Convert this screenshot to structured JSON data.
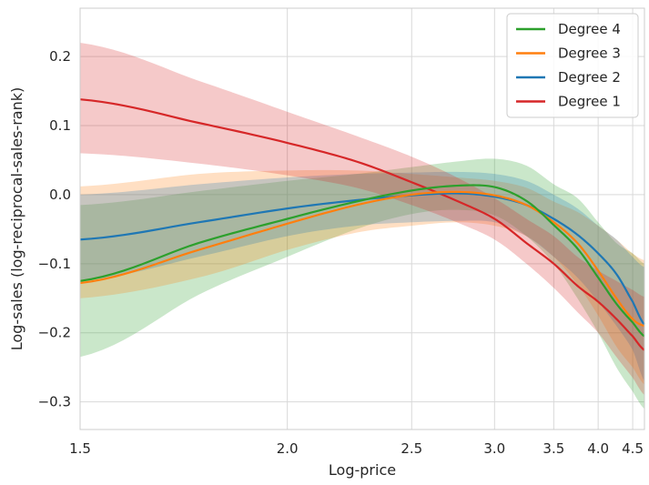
{
  "chart_data": {
    "type": "line",
    "title": "",
    "xlabel": "Log-price",
    "ylabel": "Log-sales (log-reciprocal-sales-rank)",
    "xlim": [
      1.5,
      4.7
    ],
    "ylim": [
      -0.34,
      0.27
    ],
    "x_ticks": [
      1.5,
      2.0,
      2.5,
      3.0,
      3.5,
      4.0,
      4.5
    ],
    "x_tick_labels": [
      "1.5",
      "2.0",
      "2.5",
      "3.0",
      "3.5",
      "4.0",
      "4.5"
    ],
    "y_ticks": [
      -0.3,
      -0.2,
      -0.1,
      0.0,
      0.1,
      0.2
    ],
    "y_tick_labels": [
      "−0.3",
      "−0.2",
      "−0.1",
      "0.0",
      "0.1",
      "0.2"
    ],
    "grid": true,
    "x_scale": "reciprocal",
    "legend_position": "top-right",
    "series": [
      {
        "name": "Degree 4",
        "color": "#2ca02c",
        "x": [
          1.5,
          1.75,
          2.0,
          2.25,
          2.5,
          2.75,
          3.0,
          3.25,
          3.5,
          3.75,
          4.0,
          4.25,
          4.5,
          4.7
        ],
        "y": [
          -0.125,
          -0.07,
          -0.035,
          -0.01,
          0.006,
          0.013,
          0.011,
          -0.009,
          -0.044,
          -0.078,
          -0.12,
          -0.158,
          -0.185,
          -0.205
        ],
        "lower": [
          -0.235,
          -0.145,
          -0.09,
          -0.05,
          -0.028,
          -0.022,
          -0.03,
          -0.06,
          -0.1,
          -0.15,
          -0.2,
          -0.25,
          -0.285,
          -0.31
        ],
        "upper": [
          -0.015,
          0.005,
          0.02,
          0.03,
          0.04,
          0.048,
          0.052,
          0.042,
          0.015,
          -0.005,
          -0.04,
          -0.07,
          -0.085,
          -0.1
        ]
      },
      {
        "name": "Degree 3",
        "color": "#ff7f0e",
        "x": [
          1.5,
          1.75,
          2.0,
          2.25,
          2.5,
          2.75,
          3.0,
          3.25,
          3.5,
          3.75,
          4.0,
          4.25,
          4.5,
          4.7
        ],
        "y": [
          -0.128,
          -0.08,
          -0.042,
          -0.015,
          0.0,
          0.004,
          -0.001,
          -0.015,
          -0.04,
          -0.07,
          -0.11,
          -0.15,
          -0.18,
          -0.19
        ],
        "lower": [
          -0.15,
          -0.12,
          -0.08,
          -0.055,
          -0.045,
          -0.04,
          -0.045,
          -0.06,
          -0.09,
          -0.13,
          -0.175,
          -0.22,
          -0.25,
          -0.275
        ],
        "upper": [
          0.012,
          0.03,
          0.035,
          0.035,
          0.03,
          0.025,
          0.02,
          0.01,
          -0.01,
          -0.025,
          -0.045,
          -0.065,
          -0.085,
          -0.095
        ]
      },
      {
        "name": "Degree 2",
        "color": "#1f77b4",
        "x": [
          1.5,
          1.75,
          2.0,
          2.25,
          2.5,
          2.75,
          3.0,
          3.25,
          3.5,
          3.75,
          4.0,
          4.25,
          4.5,
          4.7
        ],
        "y": [
          -0.065,
          -0.04,
          -0.02,
          -0.008,
          -0.001,
          0.002,
          -0.003,
          -0.015,
          -0.035,
          -0.058,
          -0.085,
          -0.115,
          -0.155,
          -0.188
        ],
        "lower": [
          -0.125,
          -0.09,
          -0.06,
          -0.045,
          -0.04,
          -0.038,
          -0.04,
          -0.06,
          -0.09,
          -0.12,
          -0.155,
          -0.19,
          -0.225,
          -0.27
        ],
        "upper": [
          0.0,
          0.015,
          0.025,
          0.03,
          0.032,
          0.033,
          0.03,
          0.02,
          0.0,
          -0.02,
          -0.045,
          -0.065,
          -0.09,
          -0.105
        ]
      },
      {
        "name": "Degree 1",
        "color": "#d62728",
        "x": [
          1.5,
          1.75,
          2.0,
          2.25,
          2.5,
          2.75,
          3.0,
          3.25,
          3.5,
          3.75,
          4.0,
          4.25,
          4.5,
          4.7
        ],
        "y": [
          0.138,
          0.104,
          0.075,
          0.048,
          0.018,
          -0.009,
          -0.035,
          -0.07,
          -0.1,
          -0.132,
          -0.155,
          -0.18,
          -0.205,
          -0.225
        ],
        "lower": [
          0.06,
          0.045,
          0.028,
          0.01,
          -0.015,
          -0.04,
          -0.065,
          -0.1,
          -0.135,
          -0.17,
          -0.2,
          -0.235,
          -0.265,
          -0.29
        ],
        "upper": [
          0.22,
          0.165,
          0.12,
          0.085,
          0.055,
          0.025,
          -0.005,
          -0.035,
          -0.06,
          -0.09,
          -0.11,
          -0.125,
          -0.138,
          -0.148
        ]
      }
    ]
  }
}
